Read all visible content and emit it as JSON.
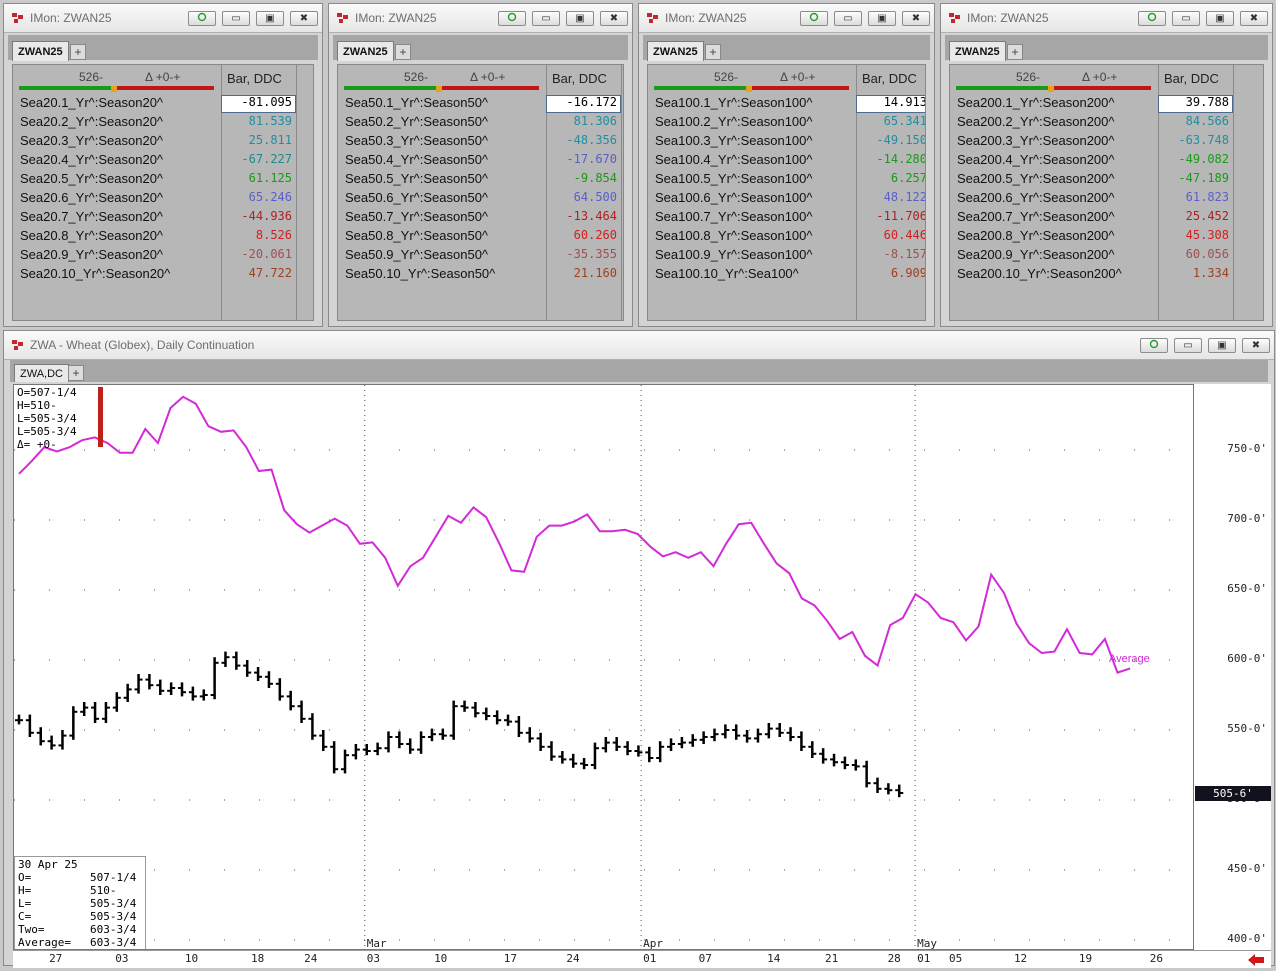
{
  "monitors": [
    {
      "title": "IMon: ZWAN25",
      "tab": "ZWAN25",
      "quote_price": "526-",
      "quote_change": "Δ +0-+",
      "study_header": "Bar, DDC",
      "rows": [
        {
          "name": "Sea20.1_Yr^:Season20^",
          "value": "-81.095",
          "color": "#000000"
        },
        {
          "name": "Sea20.2_Yr^:Season20^",
          "value": "81.539",
          "color": "#1f8fa0"
        },
        {
          "name": "Sea20.3_Yr^:Season20^",
          "value": "25.811",
          "color": "#1f8fa0"
        },
        {
          "name": "Sea20.4_Yr^:Season20^",
          "value": "-67.227",
          "color": "#1f8a8a"
        },
        {
          "name": "Sea20.5_Yr^:Season20^",
          "value": "61.125",
          "color": "#1a9a1a"
        },
        {
          "name": "Sea20.6_Yr^:Season20^",
          "value": "65.246",
          "color": "#5a5fc8"
        },
        {
          "name": "Sea20.7_Yr^:Season20^",
          "value": "-44.936",
          "color": "#b02020"
        },
        {
          "name": "Sea20.8_Yr^:Season20^",
          "value": "8.526",
          "color": "#d02020"
        },
        {
          "name": "Sea20.9_Yr^:Season20^",
          "value": "-20.061",
          "color": "#a05050"
        },
        {
          "name": "Sea20.10_Yr^:Season20^",
          "value": "47.722",
          "color": "#a04020"
        }
      ]
    },
    {
      "title": "IMon: ZWAN25",
      "tab": "ZWAN25",
      "quote_price": "526-",
      "quote_change": "Δ +0-+",
      "study_header": "Bar, DDC",
      "rows": [
        {
          "name": "Sea50.1_Yr^:Season50^",
          "value": "-16.172",
          "color": "#000000"
        },
        {
          "name": "Sea50.2_Yr^:Season50^",
          "value": "81.306",
          "color": "#1f8fa0"
        },
        {
          "name": "Sea50.3_Yr^:Season50^",
          "value": "-48.356",
          "color": "#1f8fa0"
        },
        {
          "name": "Sea50.4_Yr^:Season50^",
          "value": "-17.670",
          "color": "#5a5fc8"
        },
        {
          "name": "Sea50.5_Yr^:Season50^",
          "value": "-9.854",
          "color": "#1a9a1a"
        },
        {
          "name": "Sea50.6_Yr^:Season50^",
          "value": "64.500",
          "color": "#5a5fc8"
        },
        {
          "name": "Sea50.7_Yr^:Season50^",
          "value": "-13.464",
          "color": "#b02020"
        },
        {
          "name": "Sea50.8_Yr^:Season50^",
          "value": "60.260",
          "color": "#d02020"
        },
        {
          "name": "Sea50.9_Yr^:Season50^",
          "value": "-35.355",
          "color": "#a05050"
        },
        {
          "name": "Sea50.10_Yr^:Season50^",
          "value": "21.160",
          "color": "#a04020"
        }
      ]
    },
    {
      "title": "IMon: ZWAN25",
      "tab": "ZWAN25",
      "quote_price": "526-",
      "quote_change": "Δ +0-+",
      "study_header": "Bar, DDC",
      "rows": [
        {
          "name": "Sea100.1_Yr^:Season100^",
          "value": "14.913",
          "color": "#000000"
        },
        {
          "name": "Sea100.2_Yr^:Season100^",
          "value": "65.341",
          "color": "#1f8fa0"
        },
        {
          "name": "Sea100.3_Yr^:Season100^",
          "value": "-49.150",
          "color": "#1f8fa0"
        },
        {
          "name": "Sea100.4_Yr^:Season100^",
          "value": "-14.280",
          "color": "#1a9a1a"
        },
        {
          "name": "Sea100.5_Yr^:Season100^",
          "value": "6.257",
          "color": "#1a9a1a"
        },
        {
          "name": "Sea100.6_Yr^:Season100^",
          "value": "48.122",
          "color": "#5a5fc8"
        },
        {
          "name": "Sea100.7_Yr^:Season100^",
          "value": "-11.706",
          "color": "#b02020"
        },
        {
          "name": "Sea100.8_Yr^:Season100^",
          "value": "60.446",
          "color": "#d02020"
        },
        {
          "name": "Sea100.9_Yr^:Season100^",
          "value": "-8.157",
          "color": "#a05050"
        },
        {
          "name": "Sea100.10_Yr^:Sea100^",
          "value": "6.909",
          "color": "#a04020"
        }
      ]
    },
    {
      "title": "IMon: ZWAN25",
      "tab": "ZWAN25",
      "quote_price": "526-",
      "quote_change": "Δ +0-+",
      "study_header": "Bar, DDC",
      "rows": [
        {
          "name": "Sea200.1_Yr^:Season200^",
          "value": "39.788",
          "color": "#000000"
        },
        {
          "name": "Sea200.2_Yr^:Season200^",
          "value": "84.566",
          "color": "#1f8fa0"
        },
        {
          "name": "Sea200.3_Yr^:Season200^",
          "value": "-63.748",
          "color": "#1f8fa0"
        },
        {
          "name": "Sea200.4_Yr^:Season200^",
          "value": "-49.082",
          "color": "#1a9a1a"
        },
        {
          "name": "Sea200.5_Yr^:Season200^",
          "value": "-47.189",
          "color": "#1a9a1a"
        },
        {
          "name": "Sea200.6_Yr^:Season200^",
          "value": "61.823",
          "color": "#5a5fc8"
        },
        {
          "name": "Sea200.7_Yr^:Season200^",
          "value": "25.452",
          "color": "#b02020"
        },
        {
          "name": "Sea200.8_Yr^:Season200^",
          "value": "45.308",
          "color": "#d02020"
        },
        {
          "name": "Sea200.9_Yr^:Season200^",
          "value": "60.056",
          "color": "#a05050"
        },
        {
          "name": "Sea200.10_Yr^:Season200^",
          "value": "1.334",
          "color": "#a04020"
        }
      ]
    }
  ],
  "chart_window": {
    "title": "ZWA - Wheat (Globex), Daily Continuation",
    "tab": "ZWA,DC",
    "ohlc_top": [
      "O=507-1/4",
      "H=510-",
      "L=505-3/4",
      "L=505-3/4",
      "Δ= +0-"
    ],
    "last_price_tag": "505-6'",
    "average_label": "Average",
    "data_box": {
      "date": "30 Apr 25",
      "fields": [
        {
          "k": "O=",
          "v": "507-1/4"
        },
        {
          "k": "H=",
          "v": "510-"
        },
        {
          "k": "L=",
          "v": "505-3/4"
        },
        {
          "k": "C=",
          "v": "505-3/4"
        },
        {
          "k": "Two=",
          "v": "603-3/4"
        },
        {
          "k": "Average=",
          "v": "603-3/4"
        }
      ]
    },
    "colors": {
      "average_line": "#d22ad6",
      "bars": "#000000"
    }
  },
  "chart_data": {
    "type": "line",
    "title": "ZWA - Wheat (Globex), Daily Continuation",
    "ylim": [
      400,
      790
    ],
    "y_ticks": [
      "750-0'",
      "700-0'",
      "650-0'",
      "600-0'",
      "550-0'",
      "500-0'",
      "450-0'",
      "400-0'"
    ],
    "x_ticks": [
      "27",
      "03",
      "10",
      "18",
      "24",
      "03",
      "10",
      "17",
      "24",
      "01",
      "07",
      "14",
      "21",
      "28",
      "01",
      "05",
      "12",
      "19",
      "26"
    ],
    "month_labels": [
      "Mar",
      "Apr",
      "May"
    ],
    "grid": true,
    "series": [
      {
        "name": "Average",
        "color": "#d22ad6",
        "values": [
          733,
          742,
          752,
          749,
          752,
          757,
          759,
          755,
          748,
          748,
          765,
          755,
          780,
          788,
          783,
          767,
          763,
          764,
          752,
          735,
          736,
          707,
          697,
          691,
          696,
          701,
          696,
          683,
          684,
          673,
          653,
          667,
          673,
          688,
          703,
          698,
          709,
          702,
          684,
          664,
          663,
          688,
          696,
          696,
          699,
          704,
          692,
          692,
          693,
          690,
          681,
          674,
          677,
          673,
          677,
          667,
          683,
          697,
          698,
          683,
          669,
          662,
          644,
          639,
          628,
          615,
          620,
          603,
          596,
          625,
          630,
          647,
          641,
          630,
          627,
          614,
          624,
          661,
          648,
          626,
          612,
          605,
          606,
          622,
          605,
          604,
          615,
          591,
          594
        ]
      },
      {
        "name": "Bars",
        "color": "#000000",
        "values": [
          557,
          548,
          542,
          539,
          546,
          563,
          566,
          558,
          566,
          573,
          579,
          586,
          582,
          578,
          580,
          577,
          574,
          575,
          598,
          602,
          596,
          591,
          588,
          583,
          574,
          567,
          558,
          546,
          538,
          522,
          532,
          536,
          535,
          537,
          545,
          540,
          536,
          545,
          547,
          546,
          567,
          566,
          562,
          560,
          557,
          556,
          548,
          544,
          538,
          531,
          529,
          526,
          525,
          537,
          541,
          538,
          535,
          534,
          530,
          538,
          540,
          541,
          543,
          545,
          547,
          550,
          546,
          544,
          547,
          551,
          548,
          545,
          538,
          533,
          529,
          527,
          525,
          524,
          512,
          508,
          507,
          505
        ]
      }
    ]
  }
}
